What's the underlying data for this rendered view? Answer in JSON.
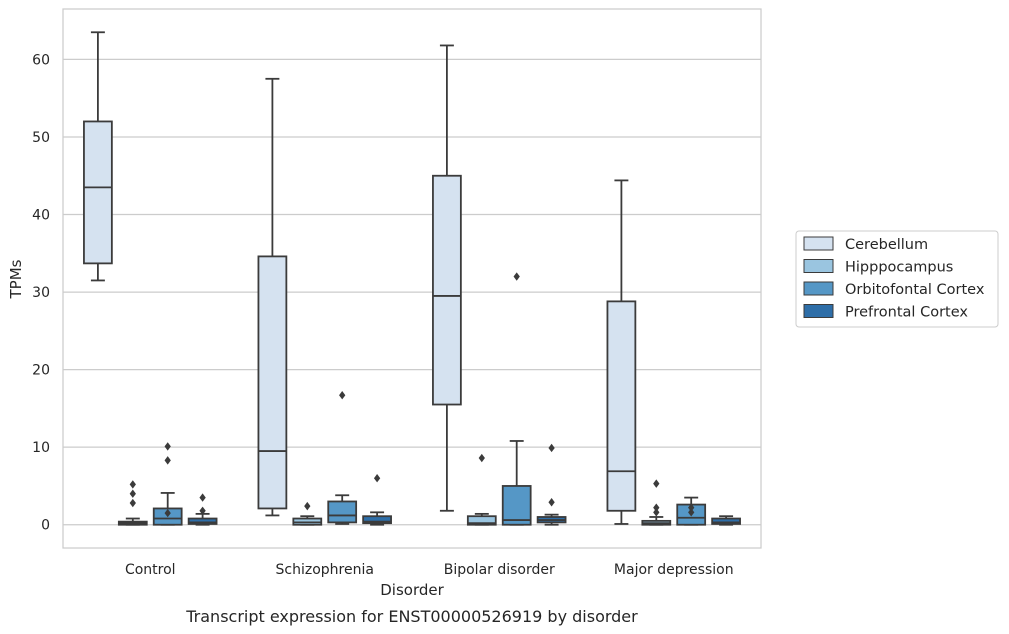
{
  "chart_data": {
    "type": "box",
    "caption": "Transcript expression for ENST00000526919 by disorder",
    "xlabel": "Disorder",
    "ylabel": "TPMs",
    "ylim": [
      -3,
      66.5
    ],
    "yticks": [
      0,
      10,
      20,
      30,
      40,
      50,
      60
    ],
    "grid": true,
    "legend_position": "right",
    "categories": [
      "Control",
      "Schizophrenia",
      "Bipolar disorder",
      "Major depression"
    ],
    "series": [
      {
        "name": "Cerebellum",
        "color": "#d5e2f0",
        "boxes": [
          {
            "whisker_low": 31.5,
            "q1": 33.7,
            "median": 43.5,
            "q3": 52.0,
            "whisker_high": 63.5,
            "outliers": []
          },
          {
            "whisker_low": 1.2,
            "q1": 2.1,
            "median": 9.5,
            "q3": 34.6,
            "whisker_high": 57.5,
            "outliers": []
          },
          {
            "whisker_low": 1.8,
            "q1": 15.5,
            "median": 29.5,
            "q3": 45.0,
            "whisker_high": 61.8,
            "outliers": []
          },
          {
            "whisker_low": 0.1,
            "q1": 1.8,
            "median": 6.9,
            "q3": 28.8,
            "whisker_high": 44.4,
            "outliers": []
          }
        ]
      },
      {
        "name": "Hipppocampus",
        "color": "#9ac5e0",
        "boxes": [
          {
            "whisker_low": 0.0,
            "q1": 0.0,
            "median": 0.2,
            "q3": 0.4,
            "whisker_high": 0.8,
            "outliers": [
              2.8,
              4.0,
              5.2
            ]
          },
          {
            "whisker_low": 0.0,
            "q1": 0.0,
            "median": 0.3,
            "q3": 0.8,
            "whisker_high": 1.1,
            "outliers": [
              2.4
            ]
          },
          {
            "whisker_low": 0.0,
            "q1": 0.0,
            "median": 0.2,
            "q3": 1.1,
            "whisker_high": 1.4,
            "outliers": [
              8.6
            ]
          },
          {
            "whisker_low": 0.0,
            "q1": 0.0,
            "median": 0.2,
            "q3": 0.5,
            "whisker_high": 1.0,
            "outliers": [
              1.6,
              2.2,
              5.3
            ]
          }
        ]
      },
      {
        "name": "Orbitofontal Cortex",
        "color": "#5597c6",
        "boxes": [
          {
            "whisker_low": 0.0,
            "q1": 0.0,
            "median": 0.8,
            "q3": 2.1,
            "whisker_high": 4.1,
            "outliers": [
              1.5,
              8.3,
              10.1
            ]
          },
          {
            "whisker_low": 0.1,
            "q1": 0.3,
            "median": 1.2,
            "q3": 3.0,
            "whisker_high": 3.8,
            "outliers": [
              16.7
            ]
          },
          {
            "whisker_low": 0.0,
            "q1": 0.0,
            "median": 0.6,
            "q3": 5.0,
            "whisker_high": 10.8,
            "outliers": [
              32.0
            ]
          },
          {
            "whisker_low": 0.0,
            "q1": 0.0,
            "median": 0.9,
            "q3": 2.6,
            "whisker_high": 3.5,
            "outliers": [
              1.6,
              2.2
            ]
          }
        ]
      },
      {
        "name": "Prefrontal Cortex",
        "color": "#2e6ea8",
        "boxes": [
          {
            "whisker_low": 0.0,
            "q1": 0.1,
            "median": 0.3,
            "q3": 0.8,
            "whisker_high": 1.4,
            "outliers": [
              1.8,
              3.5
            ]
          },
          {
            "whisker_low": 0.0,
            "q1": 0.2,
            "median": 0.4,
            "q3": 1.1,
            "whisker_high": 1.6,
            "outliers": [
              6.0
            ]
          },
          {
            "whisker_low": 0.0,
            "q1": 0.3,
            "median": 0.6,
            "q3": 1.0,
            "whisker_high": 1.3,
            "outliers": [
              2.9,
              9.9
            ]
          },
          {
            "whisker_low": 0.0,
            "q1": 0.1,
            "median": 0.3,
            "q3": 0.8,
            "whisker_high": 1.1,
            "outliers": []
          }
        ]
      }
    ]
  }
}
